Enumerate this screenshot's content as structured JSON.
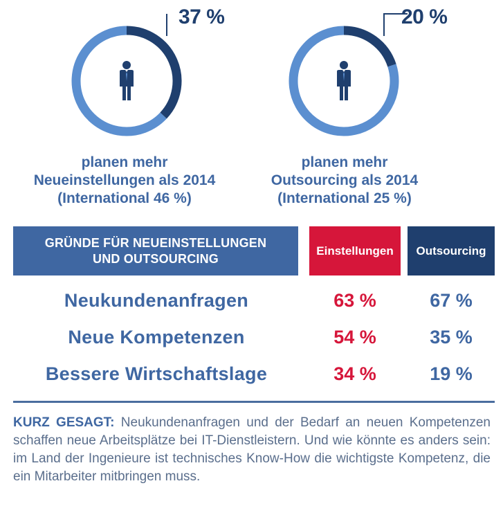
{
  "chart_data": [
    {
      "type": "pie",
      "values": [
        37,
        63
      ],
      "value_label": "37 %",
      "caption_lines": [
        "planen mehr",
        "Neueinstellungen als 2014",
        "(International 46 %)"
      ],
      "colors": {
        "highlight": "#1f3f6e",
        "rest": "#5b8fd0"
      },
      "icon": "businessman-icon"
    },
    {
      "type": "pie",
      "values": [
        20,
        80
      ],
      "value_label": "20 %",
      "caption_lines": [
        "planen mehr",
        "Outsourcing als 2014",
        "(International 25 %)"
      ],
      "colors": {
        "highlight": "#1f3f6e",
        "rest": "#5b8fd0"
      },
      "icon": "businessman-icon"
    },
    {
      "type": "table",
      "title_lines": [
        "GRÜNDE FÜR NEUEINSTELLUNGEN",
        "UND OUTSOURCING"
      ],
      "columns": [
        "Einstellungen",
        "Outsourcing"
      ],
      "rows": [
        {
          "label": "Neukundenanfragen",
          "einstellungen": "63 %",
          "outsourcing": "67 %"
        },
        {
          "label": "Neue Kompetenzen",
          "einstellungen": "54 %",
          "outsourcing": "35 %"
        },
        {
          "label": "Bessere Wirtschaftslage",
          "einstellungen": "34 %",
          "outsourcing": "19 %"
        }
      ],
      "colors": {
        "header": "#3f67a2",
        "einstellungen": "#d6163a",
        "outsourcing": "#1f3f6e"
      }
    }
  ],
  "summary": {
    "lead": "KURZ GESAGT:",
    "text": " Neukundenanfragen und der Bedarf an neuen Kompetenzen schaffen neue Arbeitsplätze bei IT-Dienstleistern. Und wie könnte es anders sein: im Land der Ingenieure ist technisches Know-How die wichtigste Kompetenz, die ein Mitarbeiter mitbringen muss."
  }
}
